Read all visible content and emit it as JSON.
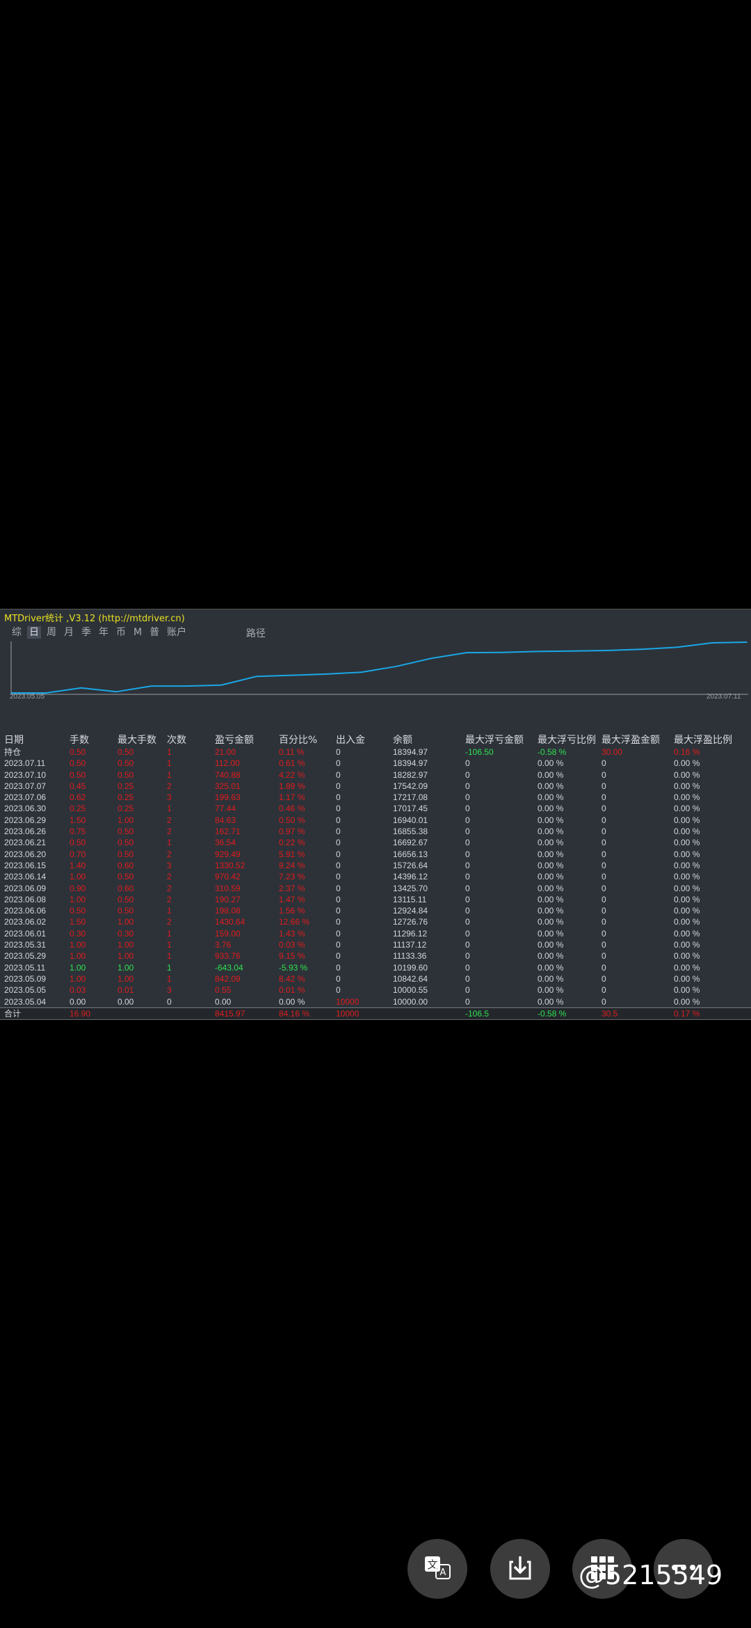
{
  "window_title": "MTDriver统计 ,V3.12 (http://mtdriver.cn)",
  "tabs": [
    "综",
    "日",
    "周",
    "月",
    "季",
    "年",
    "币",
    "M",
    "普",
    "账户"
  ],
  "active_tab": "日",
  "path_label": "路径",
  "chart_data": {
    "type": "line",
    "x_start_label": "2023.05.05",
    "x_end_label": "2023.07.11",
    "x": [
      "2023.05.04",
      "2023.05.05",
      "2023.05.09",
      "2023.05.11",
      "2023.05.29",
      "2023.05.31",
      "2023.06.01",
      "2023.06.02",
      "2023.06.06",
      "2023.06.08",
      "2023.06.09",
      "2023.06.14",
      "2023.06.15",
      "2023.06.20",
      "2023.06.21",
      "2023.06.26",
      "2023.06.29",
      "2023.06.30",
      "2023.07.06",
      "2023.07.07",
      "2023.07.10",
      "2023.07.11"
    ],
    "values": [
      10000.0,
      10000.55,
      10842.64,
      10199.6,
      11133.36,
      11137.12,
      11296.12,
      12726.76,
      12924.84,
      13115.11,
      13425.7,
      14396.12,
      15726.64,
      16656.13,
      16692.67,
      16855.38,
      16940.01,
      17017.45,
      17217.08,
      17542.09,
      18282.97,
      18394.97
    ],
    "line_color": "#1aa7e6",
    "grid": false
  },
  "columns": [
    "日期",
    "手数",
    "最大手数",
    "次数",
    "盈亏金额",
    "百分比%",
    "出入金",
    "余额",
    "最大浮亏金额",
    "最大浮亏比例",
    "最大浮盈金额",
    "最大浮盈比例"
  ],
  "open_row": {
    "date": "持仓",
    "lots": "0.50",
    "max_lots": "0.50",
    "count": "1",
    "pnl": "21.00",
    "pct": "0.11 %",
    "io": "0",
    "balance": "18394.97",
    "max_float_loss": "-106.50",
    "max_float_loss_pct": "-0.58 %",
    "max_float_profit": "30.00",
    "max_float_profit_pct": "0.16 %"
  },
  "rows": [
    {
      "date": "2023.07.11",
      "lots": "0.50",
      "max_lots": "0.50",
      "count": "1",
      "pnl": "112.00",
      "pct": "0.61 %",
      "io": "0",
      "balance": "18394.97",
      "mfl": "0",
      "mflp": "0.00 %",
      "mfp": "0",
      "mfpp": "0.00 %"
    },
    {
      "date": "2023.07.10",
      "lots": "0.50",
      "max_lots": "0.50",
      "count": "1",
      "pnl": "740.88",
      "pct": "4.22 %",
      "io": "0",
      "balance": "18282.97",
      "mfl": "0",
      "mflp": "0.00 %",
      "mfp": "0",
      "mfpp": "0.00 %"
    },
    {
      "date": "2023.07.07",
      "lots": "0.45",
      "max_lots": "0.25",
      "count": "2",
      "pnl": "325.01",
      "pct": "1.89 %",
      "io": "0",
      "balance": "17542.09",
      "mfl": "0",
      "mflp": "0.00 %",
      "mfp": "0",
      "mfpp": "0.00 %"
    },
    {
      "date": "2023.07.06",
      "lots": "0.62",
      "max_lots": "0.25",
      "count": "3",
      "pnl": "199.63",
      "pct": "1.17 %",
      "io": "0",
      "balance": "17217.08",
      "mfl": "0",
      "mflp": "0.00 %",
      "mfp": "0",
      "mfpp": "0.00 %"
    },
    {
      "date": "2023.06.30",
      "lots": "0.25",
      "max_lots": "0.25",
      "count": "1",
      "pnl": "77.44",
      "pct": "0.46 %",
      "io": "0",
      "balance": "17017.45",
      "mfl": "0",
      "mflp": "0.00 %",
      "mfp": "0",
      "mfpp": "0.00 %"
    },
    {
      "date": "2023.06.29",
      "lots": "1.50",
      "max_lots": "1.00",
      "count": "2",
      "pnl": "84.63",
      "pct": "0.50 %",
      "io": "0",
      "balance": "16940.01",
      "mfl": "0",
      "mflp": "0.00 %",
      "mfp": "0",
      "mfpp": "0.00 %"
    },
    {
      "date": "2023.06.26",
      "lots": "0.75",
      "max_lots": "0.50",
      "count": "2",
      "pnl": "162.71",
      "pct": "0.97 %",
      "io": "0",
      "balance": "16855.38",
      "mfl": "0",
      "mflp": "0.00 %",
      "mfp": "0",
      "mfpp": "0.00 %"
    },
    {
      "date": "2023.06.21",
      "lots": "0.50",
      "max_lots": "0.50",
      "count": "1",
      "pnl": "36.54",
      "pct": "0.22 %",
      "io": "0",
      "balance": "16692.67",
      "mfl": "0",
      "mflp": "0.00 %",
      "mfp": "0",
      "mfpp": "0.00 %"
    },
    {
      "date": "2023.06.20",
      "lots": "0.70",
      "max_lots": "0.50",
      "count": "2",
      "pnl": "929.49",
      "pct": "5.91 %",
      "io": "0",
      "balance": "16656.13",
      "mfl": "0",
      "mflp": "0.00 %",
      "mfp": "0",
      "mfpp": "0.00 %"
    },
    {
      "date": "2023.06.15",
      "lots": "1.40",
      "max_lots": "0.60",
      "count": "3",
      "pnl": "1330.52",
      "pct": "9.24 %",
      "io": "0",
      "balance": "15726.64",
      "mfl": "0",
      "mflp": "0.00 %",
      "mfp": "0",
      "mfpp": "0.00 %"
    },
    {
      "date": "2023.06.14",
      "lots": "1.00",
      "max_lots": "0.50",
      "count": "2",
      "pnl": "970.42",
      "pct": "7.23 %",
      "io": "0",
      "balance": "14396.12",
      "mfl": "0",
      "mflp": "0.00 %",
      "mfp": "0",
      "mfpp": "0.00 %"
    },
    {
      "date": "2023.06.09",
      "lots": "0.90",
      "max_lots": "0.60",
      "count": "2",
      "pnl": "310.59",
      "pct": "2.37 %",
      "io": "0",
      "balance": "13425.70",
      "mfl": "0",
      "mflp": "0.00 %",
      "mfp": "0",
      "mfpp": "0.00 %"
    },
    {
      "date": "2023.06.08",
      "lots": "1.00",
      "max_lots": "0.50",
      "count": "2",
      "pnl": "190.27",
      "pct": "1.47 %",
      "io": "0",
      "balance": "13115.11",
      "mfl": "0",
      "mflp": "0.00 %",
      "mfp": "0",
      "mfpp": "0.00 %"
    },
    {
      "date": "2023.06.06",
      "lots": "0.50",
      "max_lots": "0.50",
      "count": "1",
      "pnl": "198.08",
      "pct": "1.56 %",
      "io": "0",
      "balance": "12924.84",
      "mfl": "0",
      "mflp": "0.00 %",
      "mfp": "0",
      "mfpp": "0.00 %"
    },
    {
      "date": "2023.06.02",
      "lots": "1.50",
      "max_lots": "1.00",
      "count": "2",
      "pnl": "1430.64",
      "pct": "12.66 %",
      "io": "0",
      "balance": "12726.76",
      "mfl": "0",
      "mflp": "0.00 %",
      "mfp": "0",
      "mfpp": "0.00 %"
    },
    {
      "date": "2023.06.01",
      "lots": "0.30",
      "max_lots": "0.30",
      "count": "1",
      "pnl": "159.00",
      "pct": "1.43 %",
      "io": "0",
      "balance": "11296.12",
      "mfl": "0",
      "mflp": "0.00 %",
      "mfp": "0",
      "mfpp": "0.00 %"
    },
    {
      "date": "2023.05.31",
      "lots": "1.00",
      "max_lots": "1.00",
      "count": "1",
      "pnl": "3.76",
      "pct": "0.03 %",
      "io": "0",
      "balance": "11137.12",
      "mfl": "0",
      "mflp": "0.00 %",
      "mfp": "0",
      "mfpp": "0.00 %"
    },
    {
      "date": "2023.05.29",
      "lots": "1.00",
      "max_lots": "1.00",
      "count": "1",
      "pnl": "933.76",
      "pct": "9.15 %",
      "io": "0",
      "balance": "11133.36",
      "mfl": "0",
      "mflp": "0.00 %",
      "mfp": "0",
      "mfpp": "0.00 %"
    },
    {
      "date": "2023.05.11",
      "lots": "1.00",
      "max_lots": "1.00",
      "count": "1",
      "pnl": "-643.04",
      "pct": "-5.93 %",
      "io": "0",
      "balance": "10199.60",
      "mfl": "0",
      "mflp": "0.00 %",
      "mfp": "0",
      "mfpp": "0.00 %",
      "negative": true
    },
    {
      "date": "2023.05.09",
      "lots": "1.00",
      "max_lots": "1.00",
      "count": "1",
      "pnl": "842.09",
      "pct": "8.42 %",
      "io": "0",
      "balance": "10842.64",
      "mfl": "0",
      "mflp": "0.00 %",
      "mfp": "0",
      "mfpp": "0.00 %"
    },
    {
      "date": "2023.05.05",
      "lots": "0.03",
      "max_lots": "0.01",
      "count": "3",
      "pnl": "0.55",
      "pct": "0.01 %",
      "io": "0",
      "balance": "10000.55",
      "mfl": "0",
      "mflp": "0.00 %",
      "mfp": "0",
      "mfpp": "0.00 %"
    },
    {
      "date": "2023.05.04",
      "lots": "0.00",
      "max_lots": "0.00",
      "count": "0",
      "pnl": "0.00",
      "pct": "0.00 %",
      "io": "10000",
      "balance": "10000.00",
      "mfl": "0",
      "mflp": "0.00 %",
      "mfp": "0",
      "mfpp": "0.00 %",
      "neutral": true
    }
  ],
  "total_row": {
    "label": "合计",
    "lots": "16.90",
    "pnl": "8415.97",
    "pct": "84.16 %",
    "io": "10000",
    "mfl": "-106.5",
    "mflp": "-0.58 %",
    "mfp": "30.5",
    "mfpp": "0.17 %"
  },
  "bottom_buttons": [
    {
      "name": "translate-icon",
      "glyph": "文"
    },
    {
      "name": "download-icon",
      "glyph": "↓"
    },
    {
      "name": "apps-grid-icon",
      "glyph": "▦"
    },
    {
      "name": "more-icon",
      "glyph": "•••"
    }
  ],
  "watermark": "@5215549"
}
